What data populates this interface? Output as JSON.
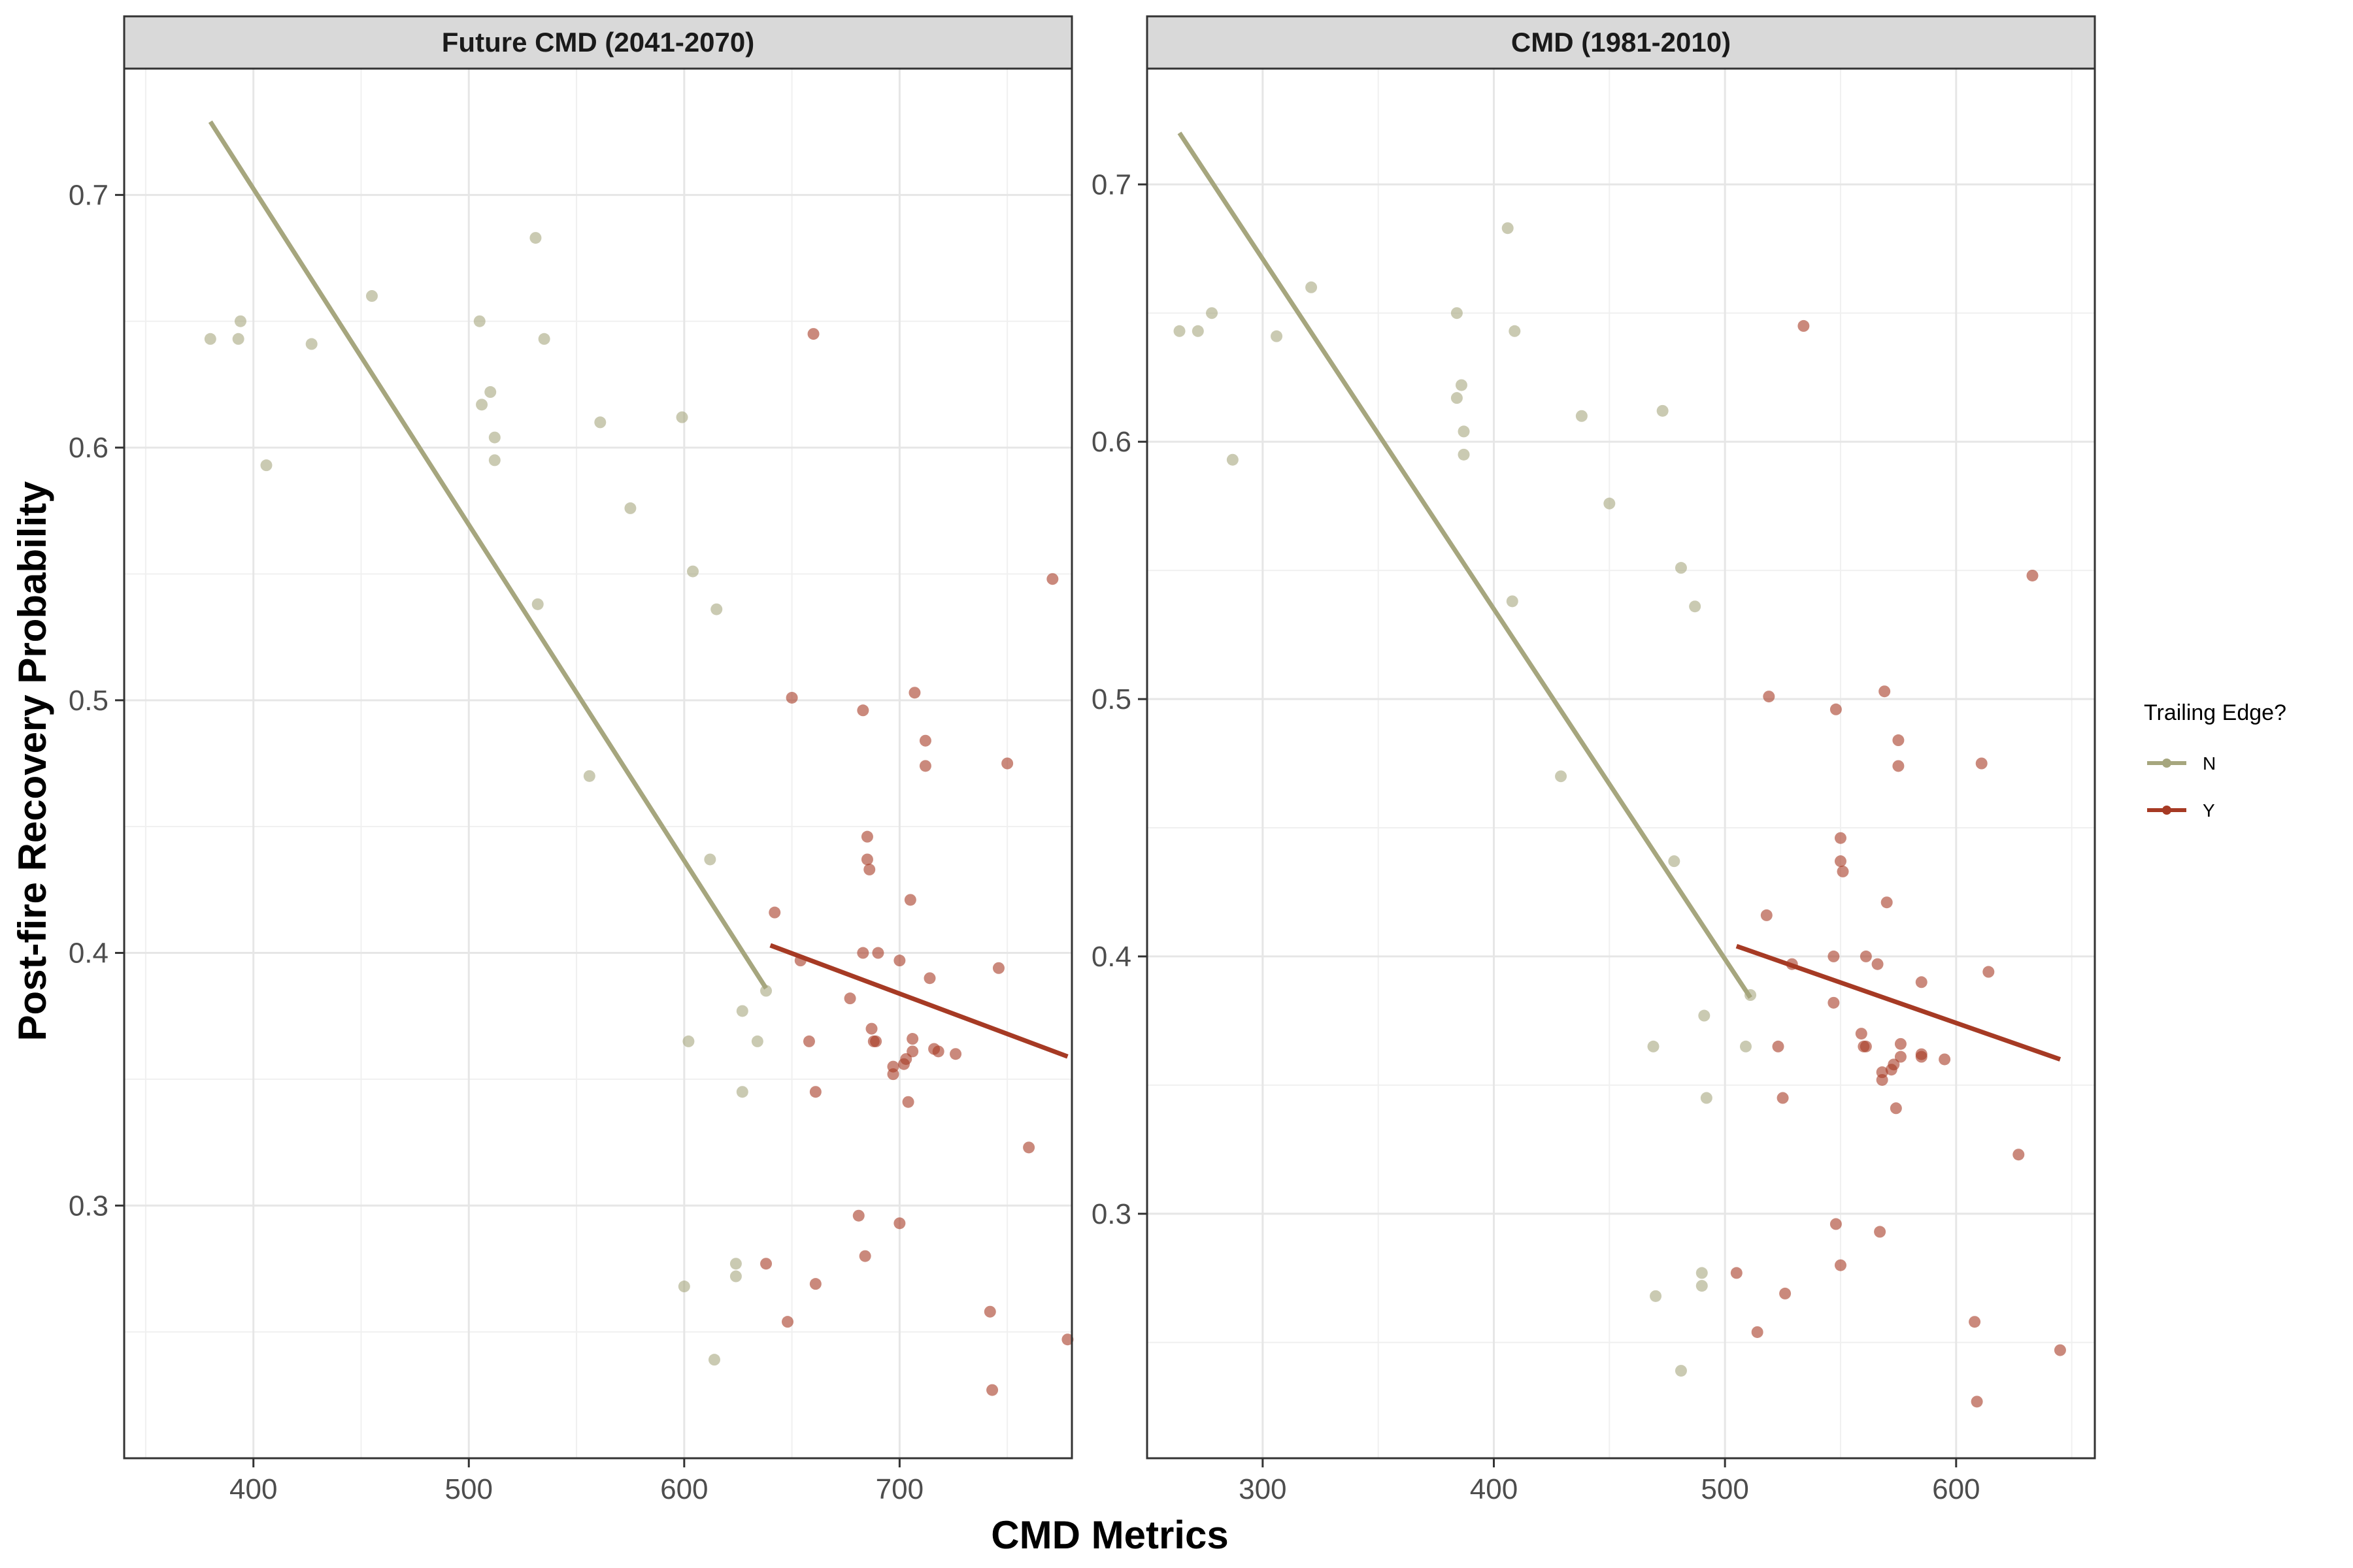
{
  "xlabel": "CMD Metrics",
  "ylabel": "Post-fire Recovery Probability",
  "legend": {
    "title": "Trailing Edge?",
    "position": "right",
    "items": [
      {
        "key": "N",
        "label": "N",
        "color": "#a6a67e"
      },
      {
        "key": "Y",
        "label": "Y",
        "color": "#a63a24"
      }
    ]
  },
  "chart_data": [
    {
      "type": "scatter",
      "title": "Future CMD (2041-2070)",
      "xlim": [
        340,
        780
      ],
      "ylim": [
        0.2,
        0.75
      ],
      "xticks": [
        400,
        500,
        600,
        700
      ],
      "yticks": [
        0.3,
        0.4,
        0.5,
        0.6,
        0.7
      ],
      "grid": true,
      "series": [
        {
          "name": "N",
          "color": "#a6a67e",
          "points": [
            [
              380,
              0.643
            ],
            [
              393,
              0.643
            ],
            [
              394,
              0.65
            ],
            [
              406,
              0.593
            ],
            [
              427,
              0.641
            ],
            [
              455,
              0.66
            ],
            [
              505,
              0.65
            ],
            [
              506,
              0.617
            ],
            [
              510,
              0.622
            ],
            [
              512,
              0.604
            ],
            [
              512,
              0.595
            ],
            [
              531,
              0.683
            ],
            [
              532,
              0.538
            ],
            [
              535,
              0.643
            ],
            [
              556,
              0.47
            ],
            [
              561,
              0.61
            ],
            [
              575,
              0.576
            ],
            [
              599,
              0.612
            ],
            [
              600,
              0.268
            ],
            [
              602,
              0.365
            ],
            [
              604,
              0.551
            ],
            [
              612,
              0.437
            ],
            [
              614,
              0.239
            ],
            [
              615,
              0.536
            ],
            [
              624,
              0.277
            ],
            [
              624,
              0.272
            ],
            [
              627,
              0.377
            ],
            [
              627,
              0.345
            ],
            [
              634,
              0.365
            ],
            [
              638,
              0.385
            ]
          ],
          "trend": [
            [
              380,
              0.729
            ],
            [
              638,
              0.386
            ]
          ]
        },
        {
          "name": "Y",
          "color": "#a63a24",
          "points": [
            [
              638,
              0.277
            ],
            [
              642,
              0.416
            ],
            [
              648,
              0.254
            ],
            [
              650,
              0.501
            ],
            [
              654,
              0.397
            ],
            [
              658,
              0.365
            ],
            [
              660,
              0.645
            ],
            [
              661,
              0.345
            ],
            [
              661,
              0.269
            ],
            [
              677,
              0.382
            ],
            [
              681,
              0.296
            ],
            [
              683,
              0.4
            ],
            [
              683,
              0.496
            ],
            [
              684,
              0.28
            ],
            [
              685,
              0.446
            ],
            [
              685,
              0.437
            ],
            [
              686,
              0.433
            ],
            [
              687,
              0.37
            ],
            [
              688,
              0.365
            ],
            [
              689,
              0.365
            ],
            [
              690,
              0.4
            ],
            [
              697,
              0.355
            ],
            [
              697,
              0.352
            ],
            [
              700,
              0.397
            ],
            [
              700,
              0.293
            ],
            [
              702,
              0.356
            ],
            [
              703,
              0.358
            ],
            [
              704,
              0.341
            ],
            [
              705,
              0.421
            ],
            [
              706,
              0.366
            ],
            [
              706,
              0.361
            ],
            [
              707,
              0.503
            ],
            [
              712,
              0.484
            ],
            [
              712,
              0.474
            ],
            [
              714,
              0.39
            ],
            [
              716,
              0.362
            ],
            [
              718,
              0.361
            ],
            [
              726,
              0.36
            ],
            [
              742,
              0.258
            ],
            [
              743,
              0.227
            ],
            [
              746,
              0.394
            ],
            [
              750,
              0.475
            ],
            [
              760,
              0.323
            ],
            [
              771,
              0.548
            ],
            [
              778,
              0.247
            ]
          ],
          "trend": [
            [
              640,
              0.403
            ],
            [
              778,
              0.359
            ]
          ]
        }
      ]
    },
    {
      "type": "scatter",
      "title": "CMD (1981-2010)",
      "xlim": [
        250,
        660
      ],
      "ylim": [
        0.205,
        0.745
      ],
      "xticks": [
        300,
        400,
        500,
        600
      ],
      "yticks": [
        0.3,
        0.4,
        0.5,
        0.6,
        0.7
      ],
      "grid": true,
      "series": [
        {
          "name": "N",
          "color": "#a6a67e",
          "points": [
            [
              264,
              0.643
            ],
            [
              272,
              0.643
            ],
            [
              278,
              0.65
            ],
            [
              287,
              0.593
            ],
            [
              306,
              0.641
            ],
            [
              321,
              0.66
            ],
            [
              384,
              0.65
            ],
            [
              384,
              0.617
            ],
            [
              386,
              0.622
            ],
            [
              387,
              0.604
            ],
            [
              387,
              0.595
            ],
            [
              406,
              0.683
            ],
            [
              408,
              0.538
            ],
            [
              409,
              0.643
            ],
            [
              429,
              0.47
            ],
            [
              438,
              0.61
            ],
            [
              450,
              0.576
            ],
            [
              469,
              0.365
            ],
            [
              470,
              0.268
            ],
            [
              473,
              0.612
            ],
            [
              478,
              0.437
            ],
            [
              481,
              0.551
            ],
            [
              481,
              0.239
            ],
            [
              487,
              0.536
            ],
            [
              490,
              0.277
            ],
            [
              490,
              0.272
            ],
            [
              491,
              0.377
            ],
            [
              492,
              0.345
            ],
            [
              509,
              0.365
            ],
            [
              511,
              0.385
            ]
          ],
          "trend": [
            [
              264,
              0.72
            ],
            [
              511,
              0.384
            ]
          ]
        },
        {
          "name": "Y",
          "color": "#a63a24",
          "points": [
            [
              505,
              0.277
            ],
            [
              514,
              0.254
            ],
            [
              518,
              0.416
            ],
            [
              519,
              0.501
            ],
            [
              523,
              0.365
            ],
            [
              525,
              0.345
            ],
            [
              526,
              0.269
            ],
            [
              529,
              0.397
            ],
            [
              534,
              0.645
            ],
            [
              547,
              0.382
            ],
            [
              547,
              0.4
            ],
            [
              548,
              0.296
            ],
            [
              548,
              0.496
            ],
            [
              550,
              0.446
            ],
            [
              550,
              0.28
            ],
            [
              550,
              0.437
            ],
            [
              551,
              0.433
            ],
            [
              559,
              0.37
            ],
            [
              560,
              0.365
            ],
            [
              561,
              0.365
            ],
            [
              561,
              0.4
            ],
            [
              566,
              0.397
            ],
            [
              567,
              0.293
            ],
            [
              568,
              0.355
            ],
            [
              568,
              0.352
            ],
            [
              569,
              0.503
            ],
            [
              570,
              0.421
            ],
            [
              572,
              0.356
            ],
            [
              573,
              0.358
            ],
            [
              574,
              0.341
            ],
            [
              575,
              0.484
            ],
            [
              575,
              0.474
            ],
            [
              576,
              0.366
            ],
            [
              576,
              0.361
            ],
            [
              585,
              0.39
            ],
            [
              585,
              0.362
            ],
            [
              585,
              0.361
            ],
            [
              595,
              0.36
            ],
            [
              608,
              0.258
            ],
            [
              609,
              0.227
            ],
            [
              611,
              0.475
            ],
            [
              614,
              0.394
            ],
            [
              627,
              0.323
            ],
            [
              633,
              0.548
            ],
            [
              645,
              0.247
            ]
          ],
          "trend": [
            [
              505,
              0.404
            ],
            [
              645,
              0.36
            ]
          ]
        }
      ]
    }
  ]
}
